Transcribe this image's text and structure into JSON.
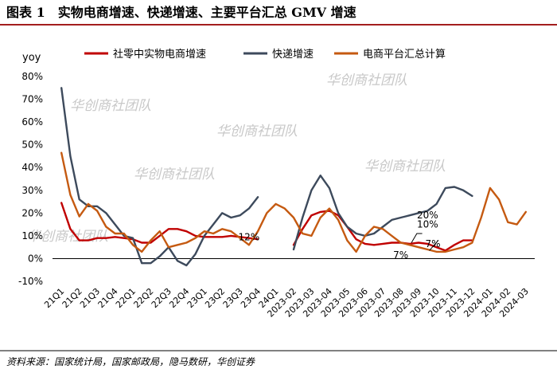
{
  "figure": {
    "caption": "图表 1　实物电商增速、快递增速、主要平台汇总 GMV 增速",
    "source": "资料来源：国家统计局，国家邮政局，隐马数研，华创证券"
  },
  "watermark": "华创商社团队",
  "colors": {
    "header_rule": "#a31e1e",
    "series": [
      "#c00000",
      "#3d4a5c",
      "#c55a11"
    ]
  },
  "chart_data": {
    "type": "line",
    "ylabel": "yoy",
    "ylim": [
      -10,
      80
    ],
    "y_ticks": [
      "-10%",
      "0%",
      "10%",
      "20%",
      "30%",
      "40%",
      "50%",
      "60%",
      "70%",
      "80%"
    ],
    "categories": [
      "21Q1",
      "21Q2",
      "21Q3",
      "21Q4",
      "22Q1",
      "22Q2",
      "22Q3",
      "22Q4",
      "23Q1",
      "23Q2",
      "23Q3",
      "23Q4",
      "24Q1",
      "2023-02",
      "2023-03",
      "2023-04",
      "2023-05",
      "2023-06",
      "2023-07",
      "2023-08",
      "2023-09",
      "2023-10",
      "2023-11",
      "2023-12",
      "2024-01",
      "2024-02",
      "2024-03"
    ],
    "series": [
      {
        "name": "社零中实物电商增速",
        "segments": [
          {
            "x": [
              0,
              0.5,
              1,
              1.5,
              2,
              2.5,
              3,
              3.5,
              4,
              4.5,
              5,
              5.5,
              6,
              6.5,
              7,
              7.5,
              8,
              8.5,
              9,
              9.5,
              10,
              10.5,
              11
            ],
            "y": [
              24.5,
              13,
              8,
              8,
              9,
              9,
              9.5,
              9,
              8.5,
              7,
              7,
              10,
              13,
              13,
              12,
              10,
              9.5,
              9.5,
              9.5,
              10,
              9.5,
              9,
              8.5
            ]
          },
          {
            "x": [
              13,
              13.5,
              14,
              14.5,
              15,
              15.5,
              16,
              16.5,
              17,
              17.5,
              18,
              18.5,
              19,
              19.5,
              20,
              20.5,
              21,
              21.5,
              22,
              22.5,
              23
            ],
            "y": [
              6,
              13,
              19,
              20.5,
              21,
              19,
              14,
              8.5,
              6.5,
              6,
              6.5,
              7,
              7,
              6.5,
              7,
              6.5,
              5,
              3.5,
              6,
              8,
              8
            ]
          }
        ]
      },
      {
        "name": "快递增速",
        "segments": [
          {
            "x": [
              0,
              0.5,
              1,
              1.5,
              2,
              2.5,
              3,
              3.5,
              4,
              4.5,
              5,
              5.5,
              6,
              6.5,
              7,
              7.5,
              8,
              8.5,
              9,
              9.5,
              10,
              10.5,
              11
            ],
            "y": [
              75,
              45,
              26,
              23,
              23,
              20,
              15,
              10,
              9,
              -2,
              -2,
              1,
              5,
              -1,
              -3,
              2,
              10,
              15,
              20,
              18,
              19,
              22,
              27
            ]
          },
          {
            "x": [
              13,
              13.5,
              14,
              14.5,
              15,
              15.5,
              16,
              16.5,
              17,
              17.5,
              18,
              18.5,
              19,
              19.5,
              20,
              20.5,
              21,
              21.5,
              22,
              22.5,
              23
            ],
            "y": [
              4,
              18,
              30,
              36.5,
              31,
              20,
              14,
              11,
              10,
              11,
              14,
              17,
              18,
              19,
              20,
              21,
              24,
              31,
              31.5,
              30,
              27.5
            ]
          }
        ]
      },
      {
        "name": "电商平台汇总计算",
        "segments": [
          {
            "x": [
              0,
              0.5,
              1,
              1.5,
              2,
              2.5,
              3,
              3.5,
              4,
              4.5,
              5,
              5.5,
              6,
              6.5,
              7,
              7.5,
              8,
              8.5,
              9,
              9.5,
              10,
              10.5,
              11,
              11.5,
              12,
              12.5,
              13,
              13.5,
              14,
              14.5,
              15,
              15.5,
              16,
              16.5,
              17,
              17.5,
              18,
              18.5,
              19,
              19.5,
              20,
              20.5,
              21,
              21.5,
              22,
              22.5,
              23,
              23.5,
              24,
              24.5,
              25,
              25.5,
              26
            ],
            "y": [
              46.5,
              28,
              18.5,
              24,
              21,
              14,
              11,
              11,
              6,
              3,
              8,
              12,
              5,
              6,
              7,
              9,
              12,
              11,
              13,
              12,
              9,
              6,
              12,
              20,
              24,
              22,
              18,
              11,
              10,
              18,
              22,
              17,
              8,
              3,
              10,
              14,
              13,
              10,
              7,
              6,
              5,
              4,
              3,
              3,
              4,
              5,
              7,
              18,
              31,
              26,
              16,
              15,
              20.5
            ]
          }
        ]
      }
    ],
    "data_labels": [
      {
        "text": "12%",
        "x": 10.5,
        "y": 9.5
      },
      {
        "text": "20%",
        "x": 20.5,
        "y": 19
      },
      {
        "text": "10%",
        "x": 20.5,
        "y": 15
      },
      {
        "text": "7%",
        "x": 19,
        "y": 1.5
      },
      {
        "text": "7%",
        "x": 20.8,
        "y": 6.5
      }
    ],
    "legend_position": "top",
    "grid": false
  }
}
